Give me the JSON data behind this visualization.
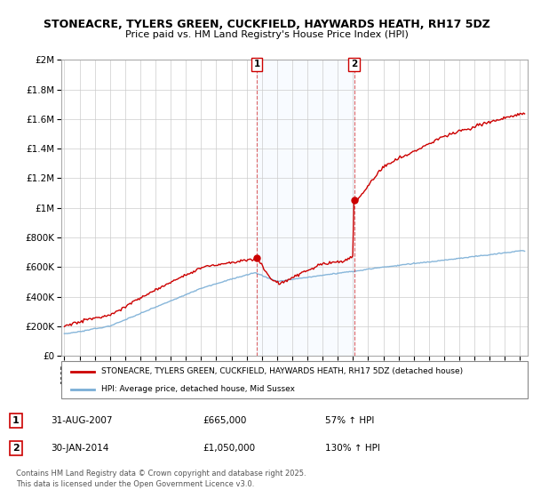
{
  "title1": "STONEACRE, TYLERS GREEN, CUCKFIELD, HAYWARDS HEATH, RH17 5DZ",
  "title2": "Price paid vs. HM Land Registry's House Price Index (HPI)",
  "legend1": "STONEACRE, TYLERS GREEN, CUCKFIELD, HAYWARDS HEATH, RH17 5DZ (detached house)",
  "legend2": "HPI: Average price, detached house, Mid Sussex",
  "annotation1": {
    "label": "1",
    "date": "31-AUG-2007",
    "price": "£665,000",
    "hpi": "57% ↑ HPI",
    "year": 2007.67
  },
  "annotation2": {
    "label": "2",
    "date": "30-JAN-2014",
    "price": "£1,050,000",
    "hpi": "130% ↑ HPI",
    "year": 2014.08
  },
  "footer": "Contains HM Land Registry data © Crown copyright and database right 2025.\nThis data is licensed under the Open Government Licence v3.0.",
  "red_color": "#cc0000",
  "blue_color": "#7aaed6",
  "shade_color": "#ddeeff",
  "grid_color": "#cccccc",
  "background_color": "#ffffff",
  "ylim": [
    0,
    2000000
  ],
  "xlim_start": 1994.8,
  "xlim_end": 2025.5
}
